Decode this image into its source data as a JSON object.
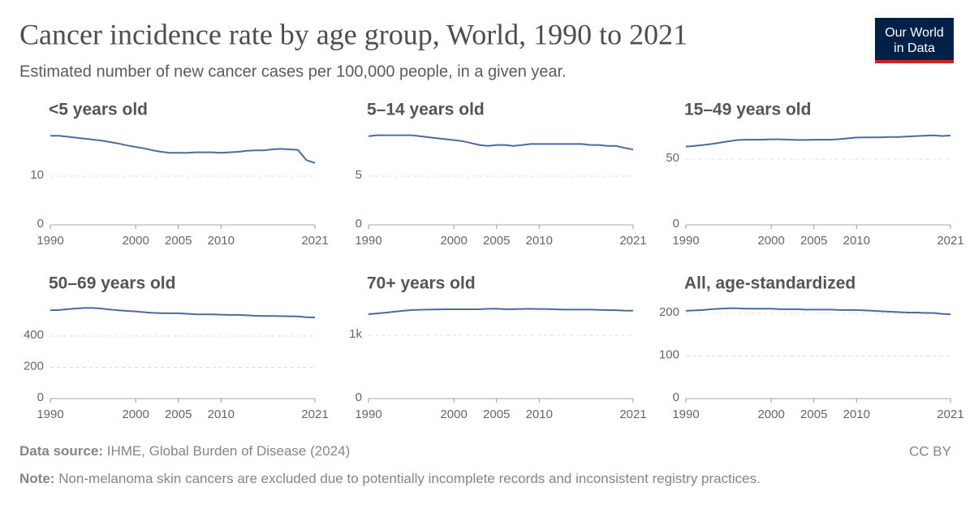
{
  "header": {
    "title": "Cancer incidence rate by age group, World, 1990 to 2021",
    "subtitle": "Estimated number of new cancer cases per 100,000 people, in a given year.",
    "logo_line1": "Our World",
    "logo_line2": "in Data"
  },
  "footer": {
    "source_label": "Data source:",
    "source": "IHME, Global Burden of Disease (2024)",
    "note_label": "Note:",
    "note": "Non-melanoma skin cancers are excluded due to potentially incomplete records and inconsistent registry practices.",
    "license": "CC BY"
  },
  "chart_data": [
    {
      "type": "line",
      "title": "<5 years old",
      "x": [
        1990,
        1991,
        1992,
        1993,
        1994,
        1995,
        1996,
        1997,
        1998,
        1999,
        2000,
        2001,
        2002,
        2003,
        2004,
        2005,
        2006,
        2007,
        2008,
        2009,
        2010,
        2011,
        2012,
        2013,
        2014,
        2015,
        2016,
        2017,
        2018,
        2019,
        2020,
        2021
      ],
      "xlim": [
        1990,
        2021
      ],
      "xticks": [
        1990,
        2000,
        2005,
        2010,
        2021
      ],
      "ylim": [
        0,
        19.5
      ],
      "yticks": [
        0,
        10
      ],
      "grid": true,
      "series": [
        {
          "color": "#4c6a9c",
          "values": [
            18.3,
            18.3,
            18.1,
            17.9,
            17.7,
            17.5,
            17.3,
            17.0,
            16.7,
            16.3,
            16.0,
            15.7,
            15.3,
            15.0,
            14.8,
            14.8,
            14.8,
            14.9,
            14.9,
            14.9,
            14.8,
            14.9,
            15.0,
            15.2,
            15.3,
            15.3,
            15.5,
            15.6,
            15.5,
            15.4,
            13.3,
            12.7
          ]
        }
      ]
    },
    {
      "type": "line",
      "title": "5–14 years old",
      "x": [
        1990,
        1991,
        1992,
        1993,
        1994,
        1995,
        1996,
        1997,
        1998,
        1999,
        2000,
        2001,
        2002,
        2003,
        2004,
        2005,
        2006,
        2007,
        2008,
        2009,
        2010,
        2011,
        2012,
        2013,
        2014,
        2015,
        2016,
        2017,
        2018,
        2019,
        2020,
        2021
      ],
      "xlim": [
        1990,
        2021
      ],
      "xticks": [
        1990,
        2000,
        2005,
        2010,
        2021
      ],
      "ylim": [
        0,
        9.75
      ],
      "yticks": [
        0,
        5
      ],
      "grid": true,
      "series": [
        {
          "color": "#4c6a9c",
          "values": [
            9.1,
            9.2,
            9.2,
            9.2,
            9.2,
            9.2,
            9.1,
            9.0,
            8.9,
            8.8,
            8.7,
            8.6,
            8.4,
            8.2,
            8.1,
            8.2,
            8.2,
            8.1,
            8.2,
            8.3,
            8.3,
            8.3,
            8.3,
            8.3,
            8.3,
            8.3,
            8.2,
            8.2,
            8.1,
            8.1,
            7.9,
            7.75
          ]
        }
      ]
    },
    {
      "type": "line",
      "title": "15–49 years old",
      "x": [
        1990,
        1991,
        1992,
        1993,
        1994,
        1995,
        1996,
        1997,
        1998,
        1999,
        2000,
        2001,
        2002,
        2003,
        2004,
        2005,
        2006,
        2007,
        2008,
        2009,
        2010,
        2011,
        2012,
        2013,
        2014,
        2015,
        2016,
        2017,
        2018,
        2019,
        2020,
        2021
      ],
      "xlim": [
        1990,
        2021
      ],
      "xticks": [
        1990,
        2000,
        2005,
        2010,
        2021
      ],
      "ylim": [
        0,
        72.2
      ],
      "yticks": [
        0,
        50
      ],
      "grid": true,
      "series": [
        {
          "color": "#4c6a9c",
          "values": [
            59.5,
            60,
            60.7,
            61.5,
            62.5,
            63.5,
            64.5,
            64.7,
            64.7,
            64.8,
            65,
            65,
            64.8,
            64.6,
            64.6,
            64.7,
            64.7,
            64.7,
            65.2,
            65.8,
            66.4,
            66.5,
            66.5,
            66.6,
            66.8,
            66.8,
            67.2,
            67.5,
            67.8,
            68,
            67.6,
            67.9
          ]
        }
      ]
    },
    {
      "type": "line",
      "title": "50–69 years old",
      "x": [
        1990,
        1991,
        1992,
        1993,
        1994,
        1995,
        1996,
        1997,
        1998,
        1999,
        2000,
        2001,
        2002,
        2003,
        2004,
        2005,
        2006,
        2007,
        2008,
        2009,
        2010,
        2011,
        2012,
        2013,
        2014,
        2015,
        2016,
        2017,
        2018,
        2019,
        2020,
        2021
      ],
      "xlim": [
        1990,
        2021
      ],
      "xticks": [
        1990,
        2000,
        2005,
        2010,
        2021
      ],
      "ylim": [
        0,
        608
      ],
      "yticks": [
        0,
        200,
        400
      ],
      "grid": true,
      "series": [
        {
          "color": "#4c6a9c",
          "values": [
            566,
            567,
            572,
            577,
            580,
            580,
            576,
            570,
            565,
            561,
            558,
            553,
            549,
            547,
            546,
            546,
            543,
            540,
            539,
            539,
            537,
            536,
            536,
            533,
            530,
            529,
            529,
            528,
            527,
            526,
            521,
            519
          ]
        }
      ]
    },
    {
      "type": "line",
      "title": "70+ years old",
      "x": [
        1990,
        1991,
        1992,
        1993,
        1994,
        1995,
        1996,
        1997,
        1998,
        1999,
        2000,
        2001,
        2002,
        2003,
        2004,
        2005,
        2006,
        2007,
        2008,
        2009,
        2010,
        2011,
        2012,
        2013,
        2014,
        2015,
        2016,
        2017,
        2018,
        2019,
        2020,
        2021
      ],
      "xlim": [
        1990,
        2021
      ],
      "xticks": [
        1990,
        2000,
        2005,
        2010,
        2021
      ],
      "ylim": [
        0,
        1500
      ],
      "yticks": [
        0,
        {
          "value": 1000,
          "label": "1k"
        }
      ],
      "grid": true,
      "series": [
        {
          "color": "#4c6a9c",
          "values": [
            1333,
            1345,
            1358,
            1372,
            1386,
            1398,
            1403,
            1405,
            1408,
            1410,
            1410,
            1410,
            1410,
            1412,
            1418,
            1420,
            1412,
            1412,
            1415,
            1418,
            1415,
            1413,
            1408,
            1405,
            1405,
            1405,
            1405,
            1400,
            1398,
            1396,
            1390,
            1388
          ]
        }
      ]
    },
    {
      "type": "line",
      "title": "All, age-standardized",
      "x": [
        1990,
        1991,
        1992,
        1993,
        1994,
        1995,
        1996,
        1997,
        1998,
        1999,
        2000,
        2001,
        2002,
        2003,
        2004,
        2005,
        2006,
        2007,
        2008,
        2009,
        2010,
        2011,
        2012,
        2013,
        2014,
        2015,
        2016,
        2017,
        2018,
        2019,
        2020,
        2021
      ],
      "xlim": [
        1990,
        2021
      ],
      "xticks": [
        1990,
        2000,
        2005,
        2010,
        2021
      ],
      "ylim": [
        0,
        223
      ],
      "yticks": [
        0,
        100,
        200
      ],
      "grid": true,
      "series": [
        {
          "color": "#4c6a9c",
          "values": [
            206,
            207,
            208,
            210,
            211,
            212,
            212,
            211,
            211,
            211,
            211,
            210,
            210,
            210,
            209,
            209,
            209,
            209,
            208,
            208,
            208,
            207,
            206,
            205,
            204,
            203,
            202,
            202,
            201,
            201,
            199,
            198
          ]
        }
      ]
    }
  ]
}
